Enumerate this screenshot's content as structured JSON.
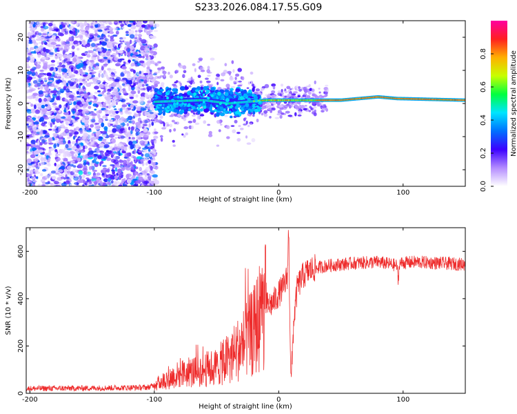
{
  "figure_title": "S233.2026.084.17.55.G09",
  "colors": {
    "background": "#ffffff",
    "axis": "#000000",
    "snr_line": "#ee2b2b",
    "trace_core": "#ff3b30",
    "trace_edge": "#3c00ff",
    "scatter": "#7a2cff"
  },
  "chart_data": [
    {
      "type": "heatmap",
      "title": "",
      "xlabel": "Height of straight line (km)",
      "ylabel": "Frequency (Hz)",
      "xlim": [
        -203,
        150
      ],
      "ylim": [
        -25,
        25
      ],
      "xticks": [
        -200,
        -100,
        0,
        100
      ],
      "yticks": [
        -20,
        -10,
        0,
        10,
        20
      ],
      "colorbar": {
        "label": "Normalized spectral amplitude",
        "ticks": [
          0.0,
          0.2,
          0.4,
          0.6,
          0.8
        ],
        "range": [
          0,
          1
        ],
        "stops": [
          "#ffffff",
          "#b48cff",
          "#3c00ff",
          "#0070ff",
          "#00e5ff",
          "#00ff40",
          "#c8ff00",
          "#ffb000",
          "#ff2020",
          "#ff00a0"
        ]
      },
      "description_values": {
        "noise_region_km": [
          -203,
          -100
        ],
        "trace_center_hz": [
          [
            -100,
            0.5
          ],
          [
            -60,
            1.0
          ],
          [
            -40,
            0.0
          ],
          [
            -10,
            1.0
          ],
          [
            0,
            1.0
          ],
          [
            50,
            1.0
          ],
          [
            80,
            2.0
          ],
          [
            95,
            1.5
          ],
          [
            150,
            1.0
          ]
        ]
      }
    },
    {
      "type": "line",
      "title": "",
      "xlabel": "Height of straight line (km)",
      "ylabel": "SNR (10 * v/v)",
      "xlim": [
        -203,
        150
      ],
      "ylim": [
        0,
        700
      ],
      "xticks": [
        -200,
        -100,
        0,
        100
      ],
      "yticks": [
        0,
        200,
        400,
        600
      ],
      "series": [
        {
          "name": "SNR",
          "x": [
            -203,
            -150,
            -105,
            -100,
            -90,
            -80,
            -60,
            -50,
            -40,
            -30,
            -20,
            -15,
            -10,
            -5,
            0,
            5,
            7,
            8,
            9,
            10,
            12,
            15,
            20,
            25,
            30,
            40,
            60,
            80,
            95,
            96,
            97,
            110,
            130,
            150
          ],
          "values": [
            20,
            22,
            25,
            35,
            60,
            80,
            100,
            110,
            150,
            200,
            260,
            330,
            370,
            380,
            420,
            460,
            500,
            700,
            300,
            40,
            300,
            450,
            500,
            520,
            530,
            540,
            550,
            555,
            540,
            470,
            550,
            555,
            550,
            545
          ]
        }
      ]
    }
  ]
}
